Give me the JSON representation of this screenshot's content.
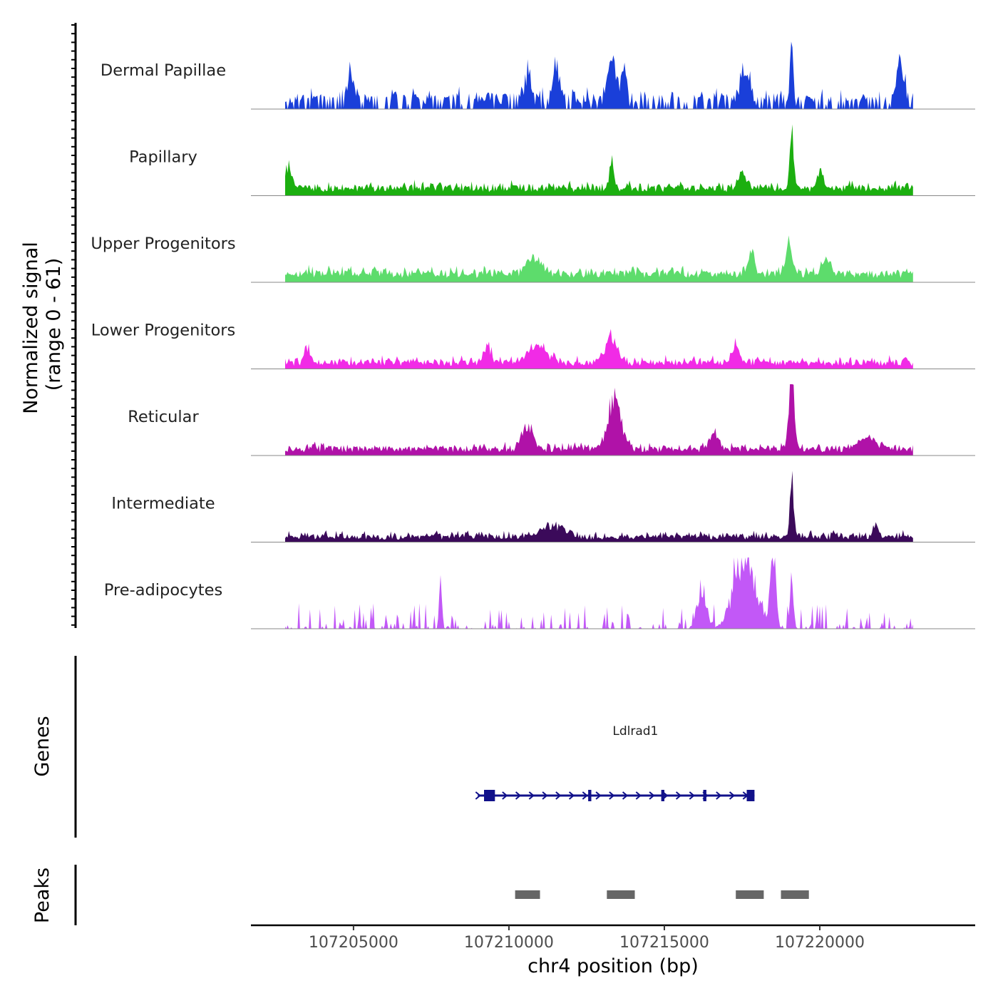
{
  "chart_data": {
    "type": "area",
    "title": "",
    "ylabel": "Normalized signal\n(range 0 - 61)",
    "ylim": [
      0,
      61
    ],
    "xlabel": "chr4 position (bp)",
    "xlim": [
      107201700,
      107225000
    ],
    "x_ticks": [
      107205000,
      107210000,
      107215000,
      107220000
    ],
    "x_tick_labels": [
      "107205000",
      "107210000",
      "107215000",
      "107220000"
    ],
    "data_extent": [
      107202800,
      107223000
    ],
    "series": [
      {
        "name": "Dermal Papillae",
        "color": "#1a3fd9",
        "baseline": 8,
        "noise": 8,
        "sparsity": 0.35,
        "peaks": [
          {
            "x": 107204900,
            "h": 25,
            "w": 120
          },
          {
            "x": 107210600,
            "h": 24,
            "w": 180
          },
          {
            "x": 107211500,
            "h": 28,
            "w": 150
          },
          {
            "x": 107213300,
            "h": 34,
            "w": 200
          },
          {
            "x": 107213700,
            "h": 28,
            "w": 120
          },
          {
            "x": 107217600,
            "h": 30,
            "w": 250
          },
          {
            "x": 107219100,
            "h": 54,
            "w": 80
          },
          {
            "x": 107222600,
            "h": 28,
            "w": 180
          }
        ],
        "seed": 11
      },
      {
        "name": "Papillary",
        "color": "#1caf10",
        "baseline": 6,
        "noise": 5,
        "sparsity": 0.0,
        "peaks": [
          {
            "x": 107202900,
            "h": 18,
            "w": 150
          },
          {
            "x": 107213300,
            "h": 28,
            "w": 90
          },
          {
            "x": 107217500,
            "h": 14,
            "w": 200
          },
          {
            "x": 107219100,
            "h": 61,
            "w": 80
          },
          {
            "x": 107220000,
            "h": 18,
            "w": 100
          }
        ],
        "seed": 23
      },
      {
        "name": "Upper Progenitors",
        "color": "#5ddc6c",
        "baseline": 7,
        "noise": 5,
        "sparsity": 0.0,
        "peaks": [
          {
            "x": 107210800,
            "h": 14,
            "w": 300
          },
          {
            "x": 107217800,
            "h": 24,
            "w": 120
          },
          {
            "x": 107219000,
            "h": 22,
            "w": 150
          },
          {
            "x": 107220200,
            "h": 12,
            "w": 200
          }
        ],
        "seed": 37
      },
      {
        "name": "Lower Progenitors",
        "color": "#f12be6",
        "baseline": 5,
        "noise": 5,
        "sparsity": 0.0,
        "peaks": [
          {
            "x": 107203500,
            "h": 16,
            "w": 120
          },
          {
            "x": 107209300,
            "h": 14,
            "w": 150
          },
          {
            "x": 107210900,
            "h": 14,
            "w": 400
          },
          {
            "x": 107213300,
            "h": 22,
            "w": 250
          },
          {
            "x": 107217300,
            "h": 18,
            "w": 150
          }
        ],
        "seed": 41
      },
      {
        "name": "Reticular",
        "color": "#b012a8",
        "baseline": 5,
        "noise": 5,
        "sparsity": 0.0,
        "peaks": [
          {
            "x": 107210600,
            "h": 20,
            "w": 250
          },
          {
            "x": 107213400,
            "h": 42,
            "w": 300
          },
          {
            "x": 107216600,
            "h": 14,
            "w": 200
          },
          {
            "x": 107219100,
            "h": 66,
            "w": 120
          },
          {
            "x": 107221500,
            "h": 10,
            "w": 400
          }
        ],
        "seed": 53
      },
      {
        "name": "Intermediate",
        "color": "#3b0a5a",
        "baseline": 4,
        "noise": 5,
        "sparsity": 0.0,
        "peaks": [
          {
            "x": 107211400,
            "h": 10,
            "w": 500
          },
          {
            "x": 107219100,
            "h": 56,
            "w": 80
          },
          {
            "x": 107221800,
            "h": 10,
            "w": 100
          }
        ],
        "seed": 67
      },
      {
        "name": "Pre-adipocytes",
        "color": "#c258f7",
        "baseline": 0,
        "noise": 22,
        "sparsity": 0.55,
        "peaks": [
          {
            "x": 107207800,
            "h": 40,
            "w": 60
          },
          {
            "x": 107217600,
            "h": 60,
            "w": 500
          },
          {
            "x": 107218500,
            "h": 60,
            "w": 120
          },
          {
            "x": 107219100,
            "h": 45,
            "w": 80
          },
          {
            "x": 107216200,
            "h": 35,
            "w": 200
          }
        ],
        "seed": 79
      }
    ],
    "genes": {
      "label": "Genes",
      "items": [
        {
          "name": "Ldlrad1",
          "start": 107209000,
          "end": 107217900,
          "strand": "+",
          "color": "#11118a",
          "exons": [
            [
              107209200,
              107209550
            ],
            [
              107212550,
              107212650
            ],
            [
              107214900,
              107215000
            ],
            [
              107216250,
              107216350
            ],
            [
              107217650,
              107217900
            ]
          ]
        }
      ]
    },
    "peaks": {
      "label": "Peaks",
      "color": "#666666",
      "regions": [
        [
          107210200,
          107211000
        ],
        [
          107213150,
          107214050
        ],
        [
          107217300,
          107218200
        ],
        [
          107218750,
          107219650
        ]
      ]
    }
  }
}
